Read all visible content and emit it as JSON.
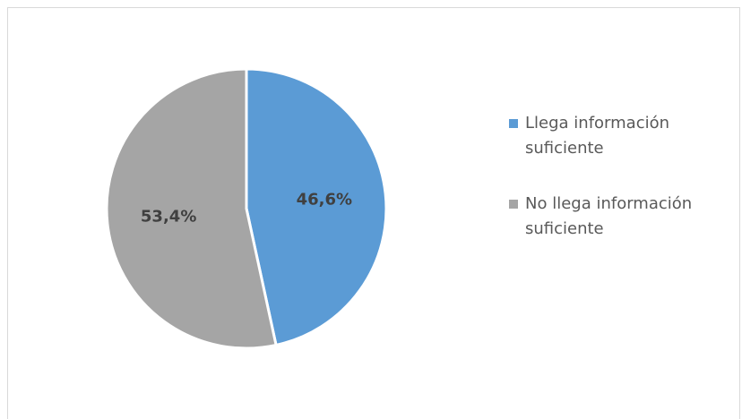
{
  "chart_data": {
    "type": "pie",
    "title": "",
    "legend_position": "right",
    "slices": [
      {
        "label": "Llega información suficiente",
        "value": 46.6,
        "display": "46,6%",
        "color": "#5b9bd5"
      },
      {
        "label": "No llega información suficiente",
        "value": 53.4,
        "display": "53,4%",
        "color": "#a5a5a5"
      }
    ]
  }
}
